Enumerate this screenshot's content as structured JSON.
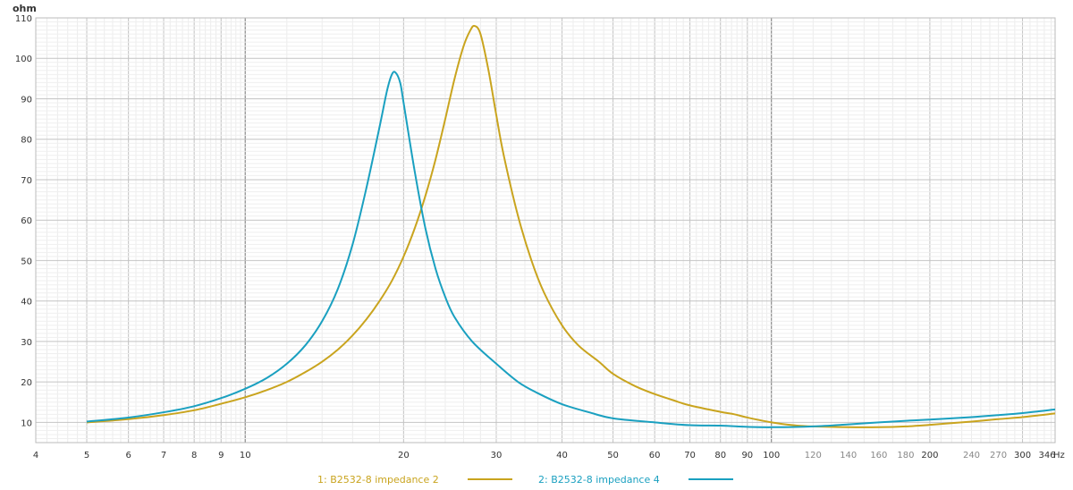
{
  "chart_data": {
    "type": "line",
    "x_scale": "log",
    "y_scale": "linear",
    "xlim": [
      4,
      346
    ],
    "ylim": [
      5,
      110
    ],
    "y_unit_label": "ohm",
    "x_unit_label": "Hz",
    "grid": true,
    "legend_position": "bottom-center",
    "x_ticks": [
      {
        "value": 4,
        "label": "4",
        "style": "major"
      },
      {
        "value": 5,
        "label": "5",
        "style": "major"
      },
      {
        "value": 6,
        "label": "6",
        "style": "major"
      },
      {
        "value": 7,
        "label": "7",
        "style": "major"
      },
      {
        "value": 8,
        "label": "8",
        "style": "major"
      },
      {
        "value": 9,
        "label": "9",
        "style": "major"
      },
      {
        "value": 10,
        "label": "10",
        "style": "major"
      },
      {
        "value": 20,
        "label": "20",
        "style": "major"
      },
      {
        "value": 30,
        "label": "30",
        "style": "major"
      },
      {
        "value": 40,
        "label": "40",
        "style": "major"
      },
      {
        "value": 50,
        "label": "50",
        "style": "major"
      },
      {
        "value": 60,
        "label": "60",
        "style": "major"
      },
      {
        "value": 70,
        "label": "70",
        "style": "major"
      },
      {
        "value": 80,
        "label": "80",
        "style": "major"
      },
      {
        "value": 90,
        "label": "90",
        "style": "major"
      },
      {
        "value": 100,
        "label": "100",
        "style": "major"
      },
      {
        "value": 120,
        "label": "120",
        "style": "minor"
      },
      {
        "value": 140,
        "label": "140",
        "style": "minor"
      },
      {
        "value": 160,
        "label": "160",
        "style": "minor"
      },
      {
        "value": 180,
        "label": "180",
        "style": "minor"
      },
      {
        "value": 200,
        "label": "200",
        "style": "major"
      },
      {
        "value": 240,
        "label": "240",
        "style": "minor"
      },
      {
        "value": 270,
        "label": "270",
        "style": "minor"
      },
      {
        "value": 300,
        "label": "300",
        "style": "major"
      },
      {
        "value": 346,
        "label": "346",
        "style": "major"
      }
    ],
    "y_ticks": [
      10,
      20,
      30,
      40,
      50,
      60,
      70,
      80,
      90,
      100,
      110
    ],
    "series": [
      {
        "name": "1: B2532-8 impedance 2",
        "color": "#c9a41e",
        "points": [
          [
            5,
            10.0
          ],
          [
            6,
            10.8
          ],
          [
            7,
            11.8
          ],
          [
            8,
            13.0
          ],
          [
            9,
            14.6
          ],
          [
            10,
            16.2
          ],
          [
            11,
            18.0
          ],
          [
            12,
            20.0
          ],
          [
            13,
            22.4
          ],
          [
            14,
            25.0
          ],
          [
            15,
            28.0
          ],
          [
            16,
            31.5
          ],
          [
            17,
            35.5
          ],
          [
            18,
            40.0
          ],
          [
            19,
            45.0
          ],
          [
            20,
            51.0
          ],
          [
            21,
            58.0
          ],
          [
            22,
            66.0
          ],
          [
            23,
            75.0
          ],
          [
            24,
            85.0
          ],
          [
            25,
            95.0
          ],
          [
            26,
            103.0
          ],
          [
            26.8,
            107.0
          ],
          [
            27.3,
            108.0
          ],
          [
            28,
            106.0
          ],
          [
            29,
            97.0
          ],
          [
            30,
            86.0
          ],
          [
            31,
            76.0
          ],
          [
            33,
            61.0
          ],
          [
            35,
            50.0
          ],
          [
            37,
            42.0
          ],
          [
            40,
            34.0
          ],
          [
            43,
            29.0
          ],
          [
            47,
            25.0
          ],
          [
            50,
            22.0
          ],
          [
            55,
            19.0
          ],
          [
            60,
            17.0
          ],
          [
            65,
            15.5
          ],
          [
            70,
            14.2
          ],
          [
            80,
            12.6
          ],
          [
            85,
            12.0
          ],
          [
            90,
            11.2
          ],
          [
            100,
            10.0
          ],
          [
            110,
            9.3
          ],
          [
            120,
            9.0
          ],
          [
            140,
            8.8
          ],
          [
            160,
            8.8
          ],
          [
            180,
            9.0
          ],
          [
            200,
            9.4
          ],
          [
            240,
            10.2
          ],
          [
            270,
            10.8
          ],
          [
            300,
            11.3
          ],
          [
            346,
            12.2
          ]
        ]
      },
      {
        "name": "2: B2532-8 impedance 4",
        "color": "#1aa0c0",
        "points": [
          [
            5,
            10.2
          ],
          [
            6,
            11.2
          ],
          [
            7,
            12.5
          ],
          [
            8,
            14.0
          ],
          [
            9,
            16.0
          ],
          [
            10,
            18.3
          ],
          [
            11,
            21.0
          ],
          [
            12,
            24.5
          ],
          [
            13,
            29.0
          ],
          [
            14,
            35.0
          ],
          [
            15,
            43.0
          ],
          [
            16,
            54.0
          ],
          [
            17,
            68.0
          ],
          [
            18,
            83.0
          ],
          [
            18.6,
            92.0
          ],
          [
            19,
            96.0
          ],
          [
            19.3,
            96.5
          ],
          [
            19.7,
            94.0
          ],
          [
            20,
            89.0
          ],
          [
            21,
            72.0
          ],
          [
            22,
            58.0
          ],
          [
            23,
            48.0
          ],
          [
            24,
            41.0
          ],
          [
            25,
            36.0
          ],
          [
            27,
            30.0
          ],
          [
            30,
            24.5
          ],
          [
            33,
            20.0
          ],
          [
            36,
            17.2
          ],
          [
            40,
            14.5
          ],
          [
            45,
            12.5
          ],
          [
            50,
            11.0
          ],
          [
            60,
            10.0
          ],
          [
            70,
            9.3
          ],
          [
            80,
            9.2
          ],
          [
            90,
            8.9
          ],
          [
            100,
            8.8
          ],
          [
            120,
            9.0
          ],
          [
            140,
            9.5
          ],
          [
            160,
            10.0
          ],
          [
            180,
            10.4
          ],
          [
            200,
            10.7
          ],
          [
            240,
            11.3
          ],
          [
            270,
            11.8
          ],
          [
            300,
            12.3
          ],
          [
            346,
            13.2
          ]
        ]
      }
    ]
  }
}
